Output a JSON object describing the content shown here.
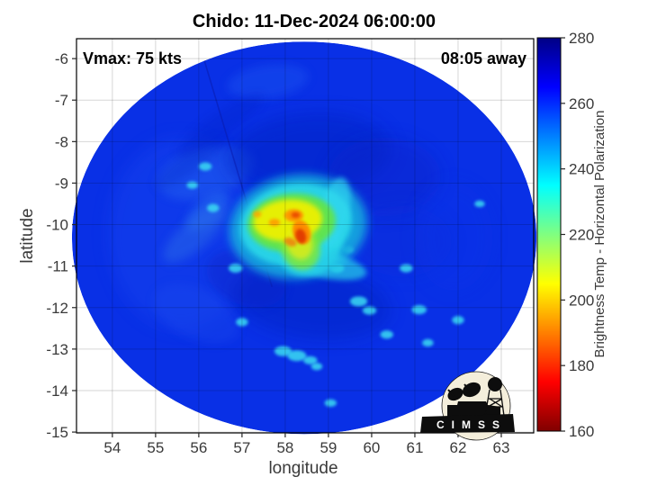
{
  "figure": {
    "title": "Chido: 11-Dec-2024 06:00:00",
    "vmax_annotation": "Vmax: 75 kts",
    "time_annotation": "08:05 away"
  },
  "logo": {
    "text": "CIMSS"
  },
  "chart_data": {
    "type": "heatmap",
    "title": "Chido: 11-Dec-2024 06:00:00",
    "annotations": {
      "vmax": "Vmax: 75 kts",
      "time_away": "08:05 away"
    },
    "xlabel": "longitude",
    "ylabel": "latitude",
    "xlim": [
      53.17,
      63.75
    ],
    "ylim": [
      -15.02,
      -5.52
    ],
    "xticks": [
      54,
      55,
      56,
      57,
      58,
      59,
      60,
      61,
      62,
      63
    ],
    "yticks": [
      -6,
      -7,
      -8,
      -9,
      -10,
      -11,
      -12,
      -13,
      -14,
      -15
    ],
    "grid": true,
    "colorbar": {
      "label": "Brightness Temp - Horizontal Polarization",
      "ticks": [
        160,
        180,
        200,
        220,
        240,
        260,
        280
      ],
      "range": [
        160,
        280
      ],
      "colormap": "jet-reversed-high-temp-blue",
      "stops": [
        [
          0,
          "#000085"
        ],
        [
          0.125,
          "#0000ff"
        ],
        [
          0.375,
          "#00ffff"
        ],
        [
          0.5,
          "#80ff80"
        ],
        [
          0.625,
          "#ffff00"
        ],
        [
          0.875,
          "#ff0000"
        ],
        [
          1,
          "#800000"
        ]
      ]
    },
    "storm_center": {
      "lon": 58.3,
      "lat": -10.1
    },
    "swath": {
      "center_lon": 58.44,
      "center_lat": -10.32,
      "radius_lon_deg": 5.375,
      "radius_lat_deg": 4.73,
      "background_color": "#0930e6",
      "seam": {
        "from": [
          56.13,
          -6.05
        ],
        "to": [
          57.69,
          -11.49
        ],
        "color": "#0a1cae",
        "width": 1.6,
        "opacity": 0.55
      }
    },
    "features": {
      "patches": [
        {
          "lon": 55.6,
          "lat": -10.2,
          "rx": 1.7,
          "ry": 2.3,
          "rot": 0,
          "color": "#1c4cf2",
          "opacity": 0.35,
          "blur": "b10"
        },
        {
          "lon": 56.15,
          "lat": -8.75,
          "rx": 1.15,
          "ry": 0.6,
          "rot": -15,
          "color": "#2a6cf0",
          "opacity": 0.4,
          "blur": "b6"
        },
        {
          "lon": 57.6,
          "lat": -6.55,
          "rx": 0.95,
          "ry": 0.4,
          "rot": -8,
          "color": "#1e55f0",
          "opacity": 0.45,
          "blur": "b6"
        },
        {
          "lon": 58.55,
          "lat": -8.3,
          "rx": 1.9,
          "ry": 1.0,
          "rot": -5,
          "color": "#0620c2",
          "opacity": 0.5,
          "blur": "b10"
        },
        {
          "lon": 60.3,
          "lat": -8.85,
          "rx": 1.3,
          "ry": 0.95,
          "rot": 0,
          "color": "#0824c8",
          "opacity": 0.42,
          "blur": "b10"
        },
        {
          "lon": 58.6,
          "lat": -11.85,
          "rx": 1.85,
          "ry": 0.9,
          "rot": 8,
          "color": "#0620c0",
          "opacity": 0.45,
          "blur": "b10"
        },
        {
          "lon": 57.1,
          "lat": -11.3,
          "rx": 0.95,
          "ry": 0.65,
          "rot": 20,
          "color": "#0724c6",
          "opacity": 0.4,
          "blur": "b6"
        },
        {
          "lon": 60.7,
          "lat": -10.4,
          "rx": 1.15,
          "ry": 0.85,
          "rot": 0,
          "color": "#0a2ad4",
          "opacity": 0.3,
          "blur": "b10"
        },
        {
          "lon": 55.95,
          "lat": -12.15,
          "rx": 1.05,
          "ry": 0.6,
          "rot": 25,
          "color": "#1c4cee",
          "opacity": 0.35,
          "blur": "b6"
        },
        {
          "lon": 56.2,
          "lat": -9.7,
          "rx": 0.6,
          "ry": 0.3,
          "rot": -40,
          "color": "#2f7af0",
          "opacity": 0.5,
          "blur": "b6"
        },
        {
          "lon": 55.9,
          "lat": -10.25,
          "rx": 0.9,
          "ry": 0.35,
          "rot": -40,
          "color": "#2a6ae8",
          "opacity": 0.5,
          "blur": "b6"
        },
        {
          "lon": 56.5,
          "lat": -7.6,
          "rx": 1.2,
          "ry": 0.28,
          "rot": -35,
          "color": "#0622c6",
          "opacity": 0.3,
          "blur": "b6"
        },
        {
          "lon": 55.8,
          "lat": -8.5,
          "rx": 1.0,
          "ry": 0.25,
          "rot": -35,
          "color": "#0622c6",
          "opacity": 0.28,
          "blur": "b6"
        },
        {
          "lon": 61.9,
          "lat": -10.3,
          "rx": 0.9,
          "ry": 1.3,
          "rot": 0,
          "color": "#0d35ea",
          "opacity": 0.28,
          "blur": "b10"
        }
      ],
      "core": [
        {
          "lon": 58.3,
          "lat": -10.05,
          "rx": 1.6,
          "ry": 1.25,
          "rot": -8,
          "color": "#18aade",
          "opacity": 0.9,
          "blur": "b6"
        },
        {
          "lon": 58.25,
          "lat": -10.0,
          "rx": 1.3,
          "ry": 0.98,
          "rot": -8,
          "color": "#2ad8e8",
          "opacity": 0.9,
          "blur": "b4"
        },
        {
          "lon": 58.6,
          "lat": -10.6,
          "rx": 0.75,
          "ry": 0.6,
          "rot": -30,
          "color": "#2ad8e8",
          "opacity": 0.75,
          "blur": "b4"
        },
        {
          "lon": 58.85,
          "lat": -10.95,
          "rx": 1.05,
          "ry": 0.32,
          "rot": 12,
          "color": "#28d0e8",
          "opacity": 0.7,
          "blur": "b4"
        },
        {
          "lon": 59.15,
          "lat": -9.7,
          "rx": 0.33,
          "ry": 0.85,
          "rot": 12,
          "color": "#30d8f0",
          "opacity": 0.65,
          "blur": "b4"
        },
        {
          "lon": 58.15,
          "lat": -9.95,
          "rx": 1.02,
          "ry": 0.7,
          "rot": -5,
          "color": "#62e44a",
          "opacity": 0.95,
          "blur": "b4"
        },
        {
          "lon": 58.35,
          "lat": -10.55,
          "rx": 0.45,
          "ry": 0.55,
          "rot": -20,
          "color": "#7ce83c",
          "opacity": 0.85,
          "blur": "b4"
        },
        {
          "lon": 58.06,
          "lat": -9.9,
          "rx": 0.8,
          "ry": 0.5,
          "rot": -5,
          "color": "#eef006",
          "opacity": 0.95,
          "blur": "b4"
        },
        {
          "lon": 58.33,
          "lat": -10.45,
          "rx": 0.3,
          "ry": 0.4,
          "rot": -15,
          "color": "#e2ec18",
          "opacity": 0.8,
          "blur": "b4"
        },
        {
          "lon": 58.2,
          "lat": -9.78,
          "rx": 0.22,
          "ry": 0.15,
          "rot": 0,
          "color": "#ff9400",
          "opacity": 0.95,
          "blur": "b2"
        },
        {
          "lon": 58.38,
          "lat": -10.18,
          "rx": 0.2,
          "ry": 0.3,
          "rot": -20,
          "color": "#ff8800",
          "opacity": 0.95,
          "blur": "b2"
        },
        {
          "lon": 58.36,
          "lat": -10.28,
          "rx": 0.12,
          "ry": 0.18,
          "rot": -15,
          "color": "#df3400",
          "opacity": 0.9,
          "blur": "b2"
        },
        {
          "lon": 58.24,
          "lat": -9.77,
          "rx": 0.1,
          "ry": 0.07,
          "rot": 0,
          "color": "#e84400",
          "opacity": 0.9,
          "blur": "b2"
        },
        {
          "lon": 57.75,
          "lat": -9.95,
          "rx": 0.13,
          "ry": 0.09,
          "rot": 0,
          "color": "#ff9c00",
          "opacity": 0.9,
          "blur": "b2"
        },
        {
          "lon": 57.35,
          "lat": -9.75,
          "rx": 0.1,
          "ry": 0.08,
          "rot": 0,
          "color": "#ffa400",
          "opacity": 0.8,
          "blur": "b2"
        },
        {
          "lon": 58.12,
          "lat": -10.42,
          "rx": 0.15,
          "ry": 0.1,
          "rot": 20,
          "color": "#f07a10",
          "opacity": 0.8,
          "blur": "b2"
        }
      ],
      "speckles": [
        [
          56.33,
          -9.6,
          0.14,
          0.1
        ],
        [
          56.85,
          -11.05,
          0.16,
          0.11
        ],
        [
          57.95,
          -13.05,
          0.2,
          0.12
        ],
        [
          58.27,
          -13.16,
          0.22,
          0.13
        ],
        [
          58.58,
          -13.27,
          0.16,
          0.1
        ],
        [
          58.73,
          -13.42,
          0.13,
          0.09
        ],
        [
          59.2,
          -11.05,
          0.16,
          0.11
        ],
        [
          59.7,
          -11.85,
          0.2,
          0.12
        ],
        [
          59.95,
          -12.07,
          0.16,
          0.1
        ],
        [
          60.8,
          -11.05,
          0.15,
          0.1
        ],
        [
          61.1,
          -12.05,
          0.17,
          0.11
        ],
        [
          62.0,
          -12.3,
          0.14,
          0.1
        ],
        [
          60.35,
          -12.65,
          0.15,
          0.1
        ],
        [
          61.3,
          -12.85,
          0.13,
          0.09
        ],
        [
          56.15,
          -8.6,
          0.15,
          0.1
        ],
        [
          55.85,
          -9.05,
          0.13,
          0.09
        ],
        [
          57.0,
          -12.35,
          0.14,
          0.1
        ],
        [
          59.05,
          -14.3,
          0.14,
          0.09
        ],
        [
          62.5,
          -9.5,
          0.12,
          0.08
        ],
        [
          59.45,
          -10.6,
          0.13,
          0.09
        ]
      ],
      "speckle_color": "#3adcf2"
    }
  }
}
